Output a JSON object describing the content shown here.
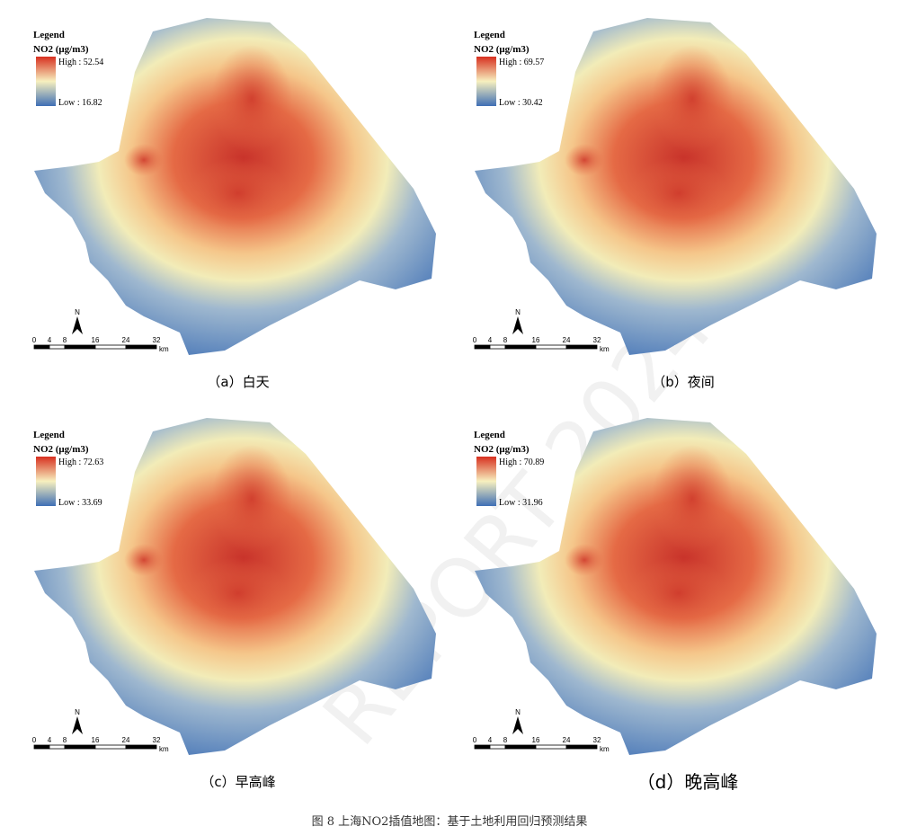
{
  "legend_title": "Legend",
  "legend_unit": "NO2 (μg/m3)",
  "scale_labels": [
    "0",
    "4",
    "8",
    "16",
    "24",
    "32"
  ],
  "scale_unit": "km",
  "north": "N",
  "panels": [
    {
      "high": "High : 52.54",
      "low": "Low : 16.82",
      "caption": "（a）白天"
    },
    {
      "high": "High : 69.57",
      "low": "Low : 30.42",
      "caption": "（b）夜间"
    },
    {
      "high": "High : 72.63",
      "low": "Low : 33.69",
      "caption": "（c）早高峰"
    },
    {
      "high": "High : 70.89",
      "low": "Low : 31.96",
      "caption": "（d）晚高峰"
    }
  ],
  "figure_caption": "图 8 上海NO2插值地图：基于土地利用回归预测结果",
  "watermark": "REPORT 2024"
}
